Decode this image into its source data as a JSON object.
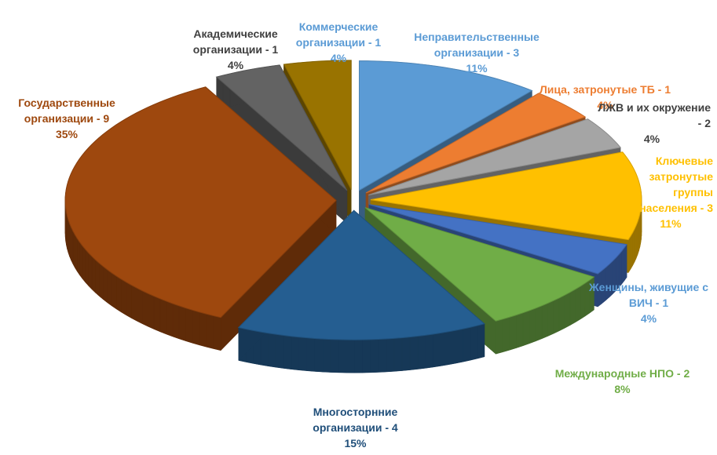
{
  "chart_data": {
    "type": "pie",
    "categories": [
      "Неправительственные организации - 3",
      "Лица, затронутые ТБ - 1",
      "ЛЖВ и их окружение - 2",
      "Ключевые затронутые группы населения - 3",
      "Женщины, живущие с ВИЧ - 1",
      "Международные НПО - 2",
      "Многосторнние организации - 4",
      "Государственные организации - 9",
      "Академические организации - 1",
      "Коммерческие организации - 1"
    ],
    "values": [
      11,
      4,
      4,
      11,
      4,
      8,
      15,
      35,
      4,
      4
    ],
    "value_labels": [
      "11%",
      "4%",
      "4%",
      "11%",
      "4%",
      "8%",
      "15%",
      "35%",
      "4%",
      "4%"
    ],
    "colors": [
      "#5b9bd5",
      "#ed7d31",
      "#a5a5a5",
      "#ffc000",
      "#4472c4",
      "#70ad47",
      "#255e91",
      "#9e480e",
      "#636363",
      "#997300"
    ],
    "label_colors": [
      "#5b9bd5",
      "#ed7d31",
      "#404040",
      "#ffc000",
      "#5b9bd5",
      "#70ad47",
      "#1f4e79",
      "#9e480e",
      "#404040",
      "#5b9bd5"
    ]
  }
}
